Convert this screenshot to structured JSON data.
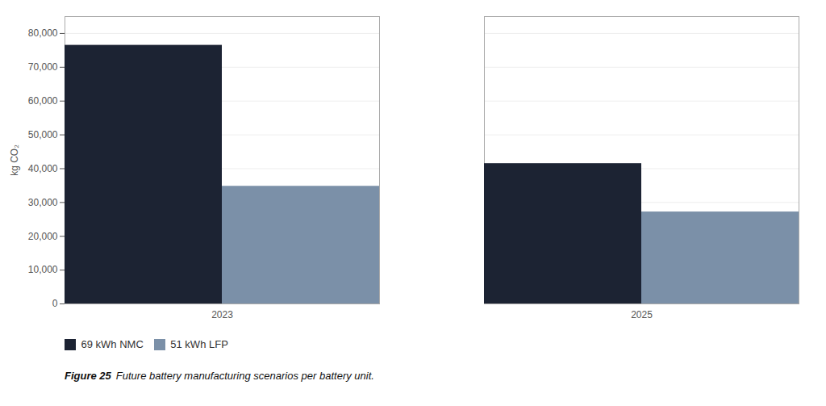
{
  "chart_data": {
    "type": "bar",
    "categories": [
      "2023",
      "2025"
    ],
    "series": [
      {
        "name": "69 kWh NMC",
        "color": "#1c2333",
        "values": [
          76500,
          41500
        ]
      },
      {
        "name": "51 kWh LFP",
        "color": "#7b90a8",
        "values": [
          34800,
          27200
        ]
      }
    ],
    "ylabel": "kg CO₂",
    "ylim": [
      0,
      85000
    ],
    "yticks": [
      0,
      {
        "value": 10000,
        "label": "10,000"
      },
      {
        "value": 20000,
        "label": "20,000"
      },
      {
        "value": 30000,
        "label": "30,000"
      },
      {
        "value": 40000,
        "label": "40,000"
      },
      {
        "value": 50000,
        "label": "50,000"
      },
      {
        "value": 60000,
        "label": "60,000"
      },
      {
        "value": 70000,
        "label": "70,000"
      },
      {
        "value": 80000,
        "label": "80,000"
      }
    ],
    "grid": true,
    "legend": "bottom",
    "caption_label": "Figure 25",
    "caption": "Future battery manufacturing scenarios per battery unit."
  }
}
